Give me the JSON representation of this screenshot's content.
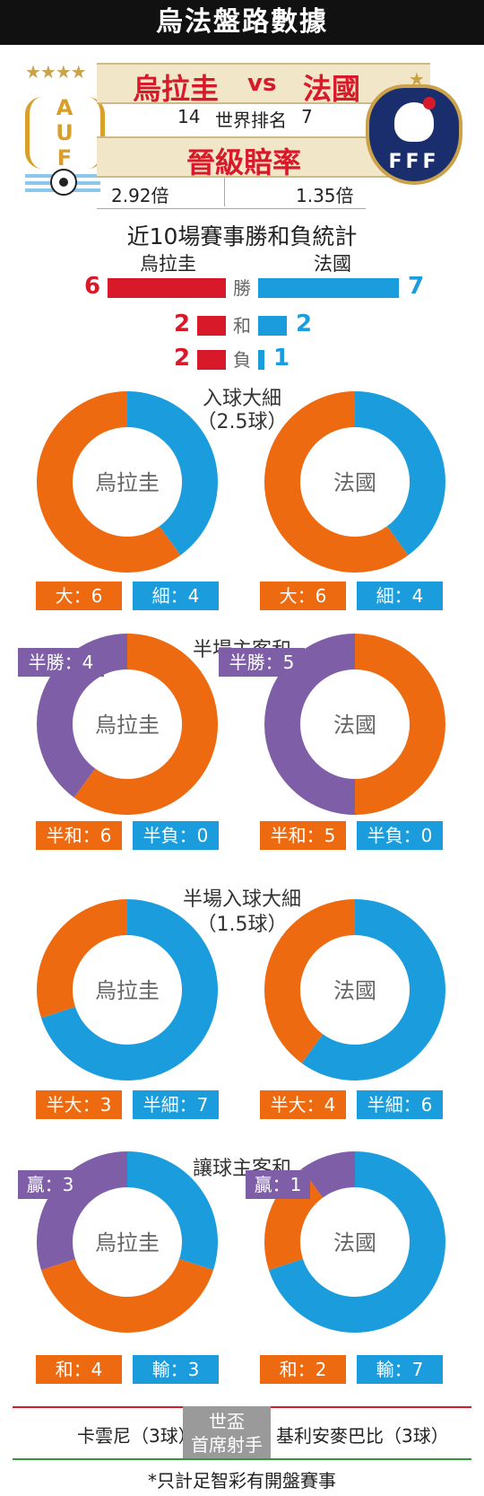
{
  "title": "烏法盤路數據",
  "header": {
    "team_home": "烏拉圭",
    "vs": "vs",
    "team_away": "法國",
    "rank_home": "14",
    "rank_label": "世界排名",
    "rank_away": "7",
    "odds_label": "晉級賠率",
    "odds_home": "2.92倍",
    "odds_away": "1.35倍",
    "auf_letters": [
      "A",
      "U",
      "F"
    ],
    "fff_letters": "FFF"
  },
  "wdl": {
    "title": "近10場賽事勝和負統計",
    "home_name": "烏拉圭",
    "away_name": "法國",
    "rows": [
      {
        "label": "勝",
        "home": 6,
        "away": 7
      },
      {
        "label": "和",
        "home": 2,
        "away": 2
      },
      {
        "label": "負",
        "home": 2,
        "away": 1
      }
    ]
  },
  "colors": {
    "orange": "#ee6a10",
    "blue": "#1b9ddd",
    "purple": "#7f5ea8",
    "red": "#d8192a",
    "green": "#2e9a3c"
  },
  "chart_data": [
    {
      "type": "pie",
      "section": "入球大細",
      "sub": "（2.5球）",
      "team": "烏拉圭",
      "slices": [
        {
          "name": "大",
          "value": 6,
          "label": "大：6",
          "color": "#ee6a10"
        },
        {
          "name": "細",
          "value": 4,
          "label": "細：4",
          "color": "#1b9ddd"
        }
      ]
    },
    {
      "type": "pie",
      "section": "入球大細",
      "sub": "（2.5球）",
      "team": "法國",
      "slices": [
        {
          "name": "大",
          "value": 6,
          "label": "大：6",
          "color": "#ee6a10"
        },
        {
          "name": "細",
          "value": 4,
          "label": "細：4",
          "color": "#1b9ddd"
        }
      ]
    },
    {
      "type": "pie",
      "section": "半場主客和",
      "team": "烏拉圭",
      "slices": [
        {
          "name": "半勝",
          "value": 4,
          "label": "半勝：4",
          "color": "#7f5ea8"
        },
        {
          "name": "半和",
          "value": 6,
          "label": "半和：6",
          "color": "#ee6a10"
        },
        {
          "name": "半負",
          "value": 0,
          "label": "半負：0",
          "color": "#1b9ddd"
        }
      ]
    },
    {
      "type": "pie",
      "section": "半場主客和",
      "team": "法國",
      "slices": [
        {
          "name": "半勝",
          "value": 5,
          "label": "半勝：5",
          "color": "#7f5ea8"
        },
        {
          "name": "半和",
          "value": 5,
          "label": "半和：5",
          "color": "#ee6a10"
        },
        {
          "name": "半負",
          "value": 0,
          "label": "半負：0",
          "color": "#1b9ddd"
        }
      ]
    },
    {
      "type": "pie",
      "section": "半場入球大細",
      "sub": "（1.5球）",
      "team": "烏拉圭",
      "slices": [
        {
          "name": "半大",
          "value": 3,
          "label": "半大：3",
          "color": "#ee6a10"
        },
        {
          "name": "半細",
          "value": 7,
          "label": "半細：7",
          "color": "#1b9ddd"
        }
      ]
    },
    {
      "type": "pie",
      "section": "半場入球大細",
      "sub": "（1.5球）",
      "team": "法國",
      "slices": [
        {
          "name": "半大",
          "value": 4,
          "label": "半大：4",
          "color": "#ee6a10"
        },
        {
          "name": "半細",
          "value": 6,
          "label": "半細：6",
          "color": "#1b9ddd"
        }
      ]
    },
    {
      "type": "pie",
      "section": "讓球主客和",
      "team": "烏拉圭",
      "slices": [
        {
          "name": "贏",
          "value": 3,
          "label": "贏：3",
          "color": "#7f5ea8"
        },
        {
          "name": "和",
          "value": 4,
          "label": "和：4",
          "color": "#ee6a10"
        },
        {
          "name": "輸",
          "value": 3,
          "label": "輸：3",
          "color": "#1b9ddd"
        }
      ]
    },
    {
      "type": "pie",
      "section": "讓球主客和",
      "team": "法國",
      "slices": [
        {
          "name": "贏",
          "value": 1,
          "label": "贏：1",
          "color": "#7f5ea8"
        },
        {
          "name": "和",
          "value": 2,
          "label": "和：2",
          "color": "#ee6a10"
        },
        {
          "name": "輸",
          "value": 7,
          "label": "輸：7",
          "color": "#1b9ddd"
        }
      ]
    }
  ],
  "sections": {
    "s1_title": "入球大細",
    "s1_sub": "（2.5球）",
    "s2_title": "半場主客和",
    "s3_title": "半場入球大細",
    "s3_sub": "（1.5球）",
    "s4_title": "讓球主客和"
  },
  "footer": {
    "scorer_home": "卡雲尼（3球）",
    "badge_line1": "世盃",
    "badge_line2": "首席射手",
    "scorer_away": "基利安麥巴比（3球）",
    "note": "*只計足智彩有開盤賽事"
  }
}
